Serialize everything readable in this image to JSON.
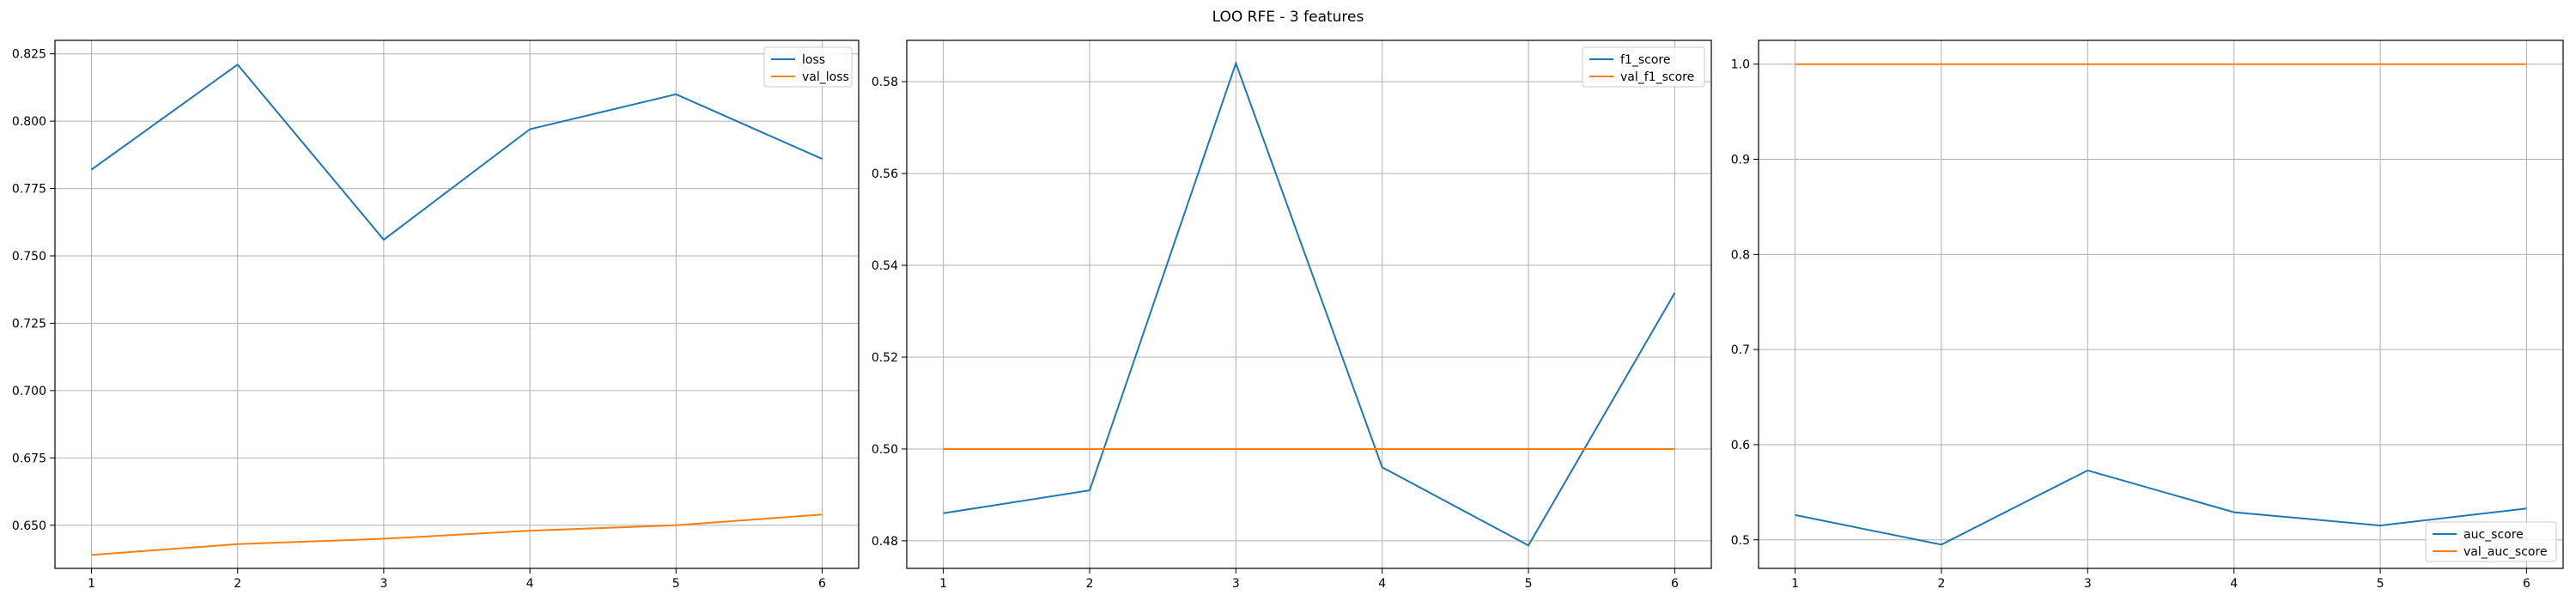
{
  "title": "LOO RFE - 3 features",
  "colors": {
    "series_1": "#1f77b4",
    "series_2": "#ff7f0e",
    "grid": "#b0b0b0",
    "axis": "#000000"
  },
  "chart_data": [
    {
      "type": "line",
      "x": [
        1,
        2,
        3,
        4,
        5,
        6
      ],
      "xticks": [
        "1",
        "2",
        "3",
        "4",
        "5",
        "6"
      ],
      "ylim": [
        0.634,
        0.83
      ],
      "yticks": [
        0.65,
        0.675,
        0.7,
        0.725,
        0.75,
        0.775,
        0.8,
        0.825
      ],
      "ytick_labels": [
        "0.650",
        "0.675",
        "0.700",
        "0.725",
        "0.750",
        "0.775",
        "0.800",
        "0.825"
      ],
      "grid": true,
      "legend_position": "top-right",
      "series": [
        {
          "name": "loss",
          "values": [
            0.782,
            0.821,
            0.756,
            0.797,
            0.81,
            0.786
          ]
        },
        {
          "name": "val_loss",
          "values": [
            0.639,
            0.643,
            0.645,
            0.648,
            0.65,
            0.654
          ]
        }
      ]
    },
    {
      "type": "line",
      "x": [
        1,
        2,
        3,
        4,
        5,
        6
      ],
      "xticks": [
        "1",
        "2",
        "3",
        "4",
        "5",
        "6"
      ],
      "ylim": [
        0.474,
        0.589
      ],
      "yticks": [
        0.48,
        0.5,
        0.52,
        0.54,
        0.56,
        0.58
      ],
      "ytick_labels": [
        "0.48",
        "0.50",
        "0.52",
        "0.54",
        "0.56",
        "0.58"
      ],
      "grid": true,
      "legend_position": "top-right",
      "series": [
        {
          "name": "f1_score",
          "values": [
            0.486,
            0.491,
            0.584,
            0.496,
            0.479,
            0.534
          ]
        },
        {
          "name": "val_f1_score",
          "values": [
            0.5,
            0.5,
            0.5,
            0.5,
            0.5,
            0.5
          ]
        }
      ]
    },
    {
      "type": "line",
      "x": [
        1,
        2,
        3,
        4,
        5,
        6
      ],
      "xticks": [
        "1",
        "2",
        "3",
        "4",
        "5",
        "6"
      ],
      "ylim": [
        0.47,
        1.025
      ],
      "yticks": [
        0.5,
        0.6,
        0.7,
        0.8,
        0.9,
        1.0
      ],
      "ytick_labels": [
        "0.5",
        "0.6",
        "0.7",
        "0.8",
        "0.9",
        "1.0"
      ],
      "grid": true,
      "legend_position": "bottom-right",
      "series": [
        {
          "name": "auc_score",
          "values": [
            0.526,
            0.495,
            0.573,
            0.529,
            0.515,
            0.533
          ]
        },
        {
          "name": "val_auc_score",
          "values": [
            1.0,
            1.0,
            1.0,
            1.0,
            1.0,
            1.0
          ]
        }
      ]
    }
  ]
}
